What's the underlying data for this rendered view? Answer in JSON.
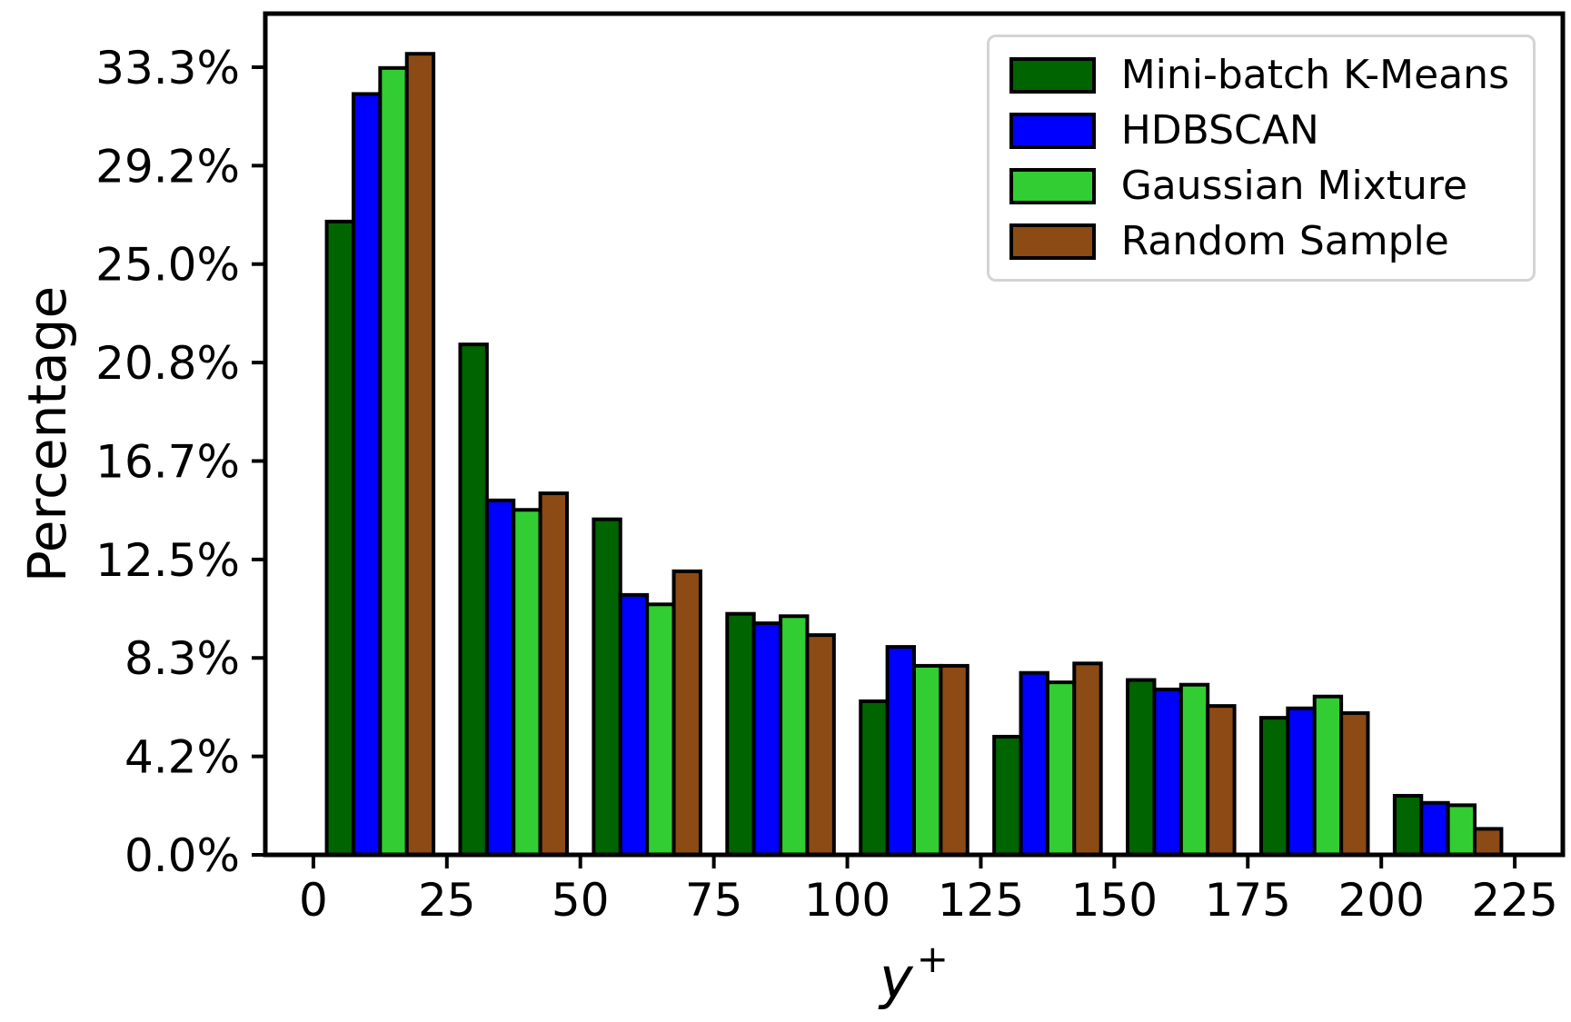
{
  "figure": {
    "background": "#ffffff",
    "frame_color": "#000000"
  },
  "chart_data": {
    "type": "bar",
    "subtype": "grouped-histogram",
    "title": "",
    "xlabel": "y+",
    "xlabel_base": "y",
    "xlabel_sup": "+",
    "ylabel": "Percentage",
    "categories": [
      "0–25",
      "25–50",
      "50–75",
      "75–100",
      "100–125",
      "125–150",
      "150–175",
      "175–200",
      "200–225"
    ],
    "bin_start": [
      0,
      25,
      50,
      75,
      100,
      125,
      150,
      175,
      200
    ],
    "bin_width": 25,
    "series": [
      {
        "name": "Mini-batch K-Means",
        "color": "#006400",
        "values": [
          26.8,
          21.6,
          14.2,
          10.2,
          6.5,
          5.0,
          7.4,
          5.8,
          2.5
        ]
      },
      {
        "name": "HDBSCAN",
        "color": "#0000ff",
        "values": [
          32.2,
          15.0,
          11.0,
          9.8,
          8.8,
          7.7,
          7.0,
          6.2,
          2.2
        ]
      },
      {
        "name": "Gaussian Mixture",
        "color": "#32cd32",
        "values": [
          33.3,
          14.6,
          10.6,
          10.1,
          8.0,
          7.3,
          7.2,
          6.7,
          2.1
        ]
      },
      {
        "name": "Random Sample",
        "color": "#8c4a15",
        "values": [
          33.9,
          15.3,
          12.0,
          9.3,
          8.0,
          8.1,
          6.3,
          6.0,
          1.1
        ]
      }
    ],
    "edge_color": "#000000",
    "edge_width": 4,
    "bar_group_fraction": 0.8,
    "xlim": [
      -9,
      234
    ],
    "ylim": [
      0,
      35.6
    ],
    "x_ticks": {
      "values": [
        0,
        25,
        50,
        75,
        100,
        125,
        150,
        175,
        200,
        225
      ],
      "labels": [
        "0",
        "25",
        "50",
        "75",
        "100",
        "125",
        "150",
        "175",
        "200",
        "225"
      ]
    },
    "y_ticks": {
      "values": [
        0,
        4.1667,
        8.3333,
        12.5,
        16.6667,
        20.8333,
        25.0,
        29.1667,
        33.3333
      ],
      "labels": [
        "0.0%",
        "4.2%",
        "8.3%",
        "12.5%",
        "16.7%",
        "20.8%",
        "25.0%",
        "29.2%",
        "33.3%"
      ]
    },
    "grid": "off",
    "legend": {
      "position": "upper right",
      "border_color": "#d4d4d4",
      "background": "#ffffff"
    }
  }
}
